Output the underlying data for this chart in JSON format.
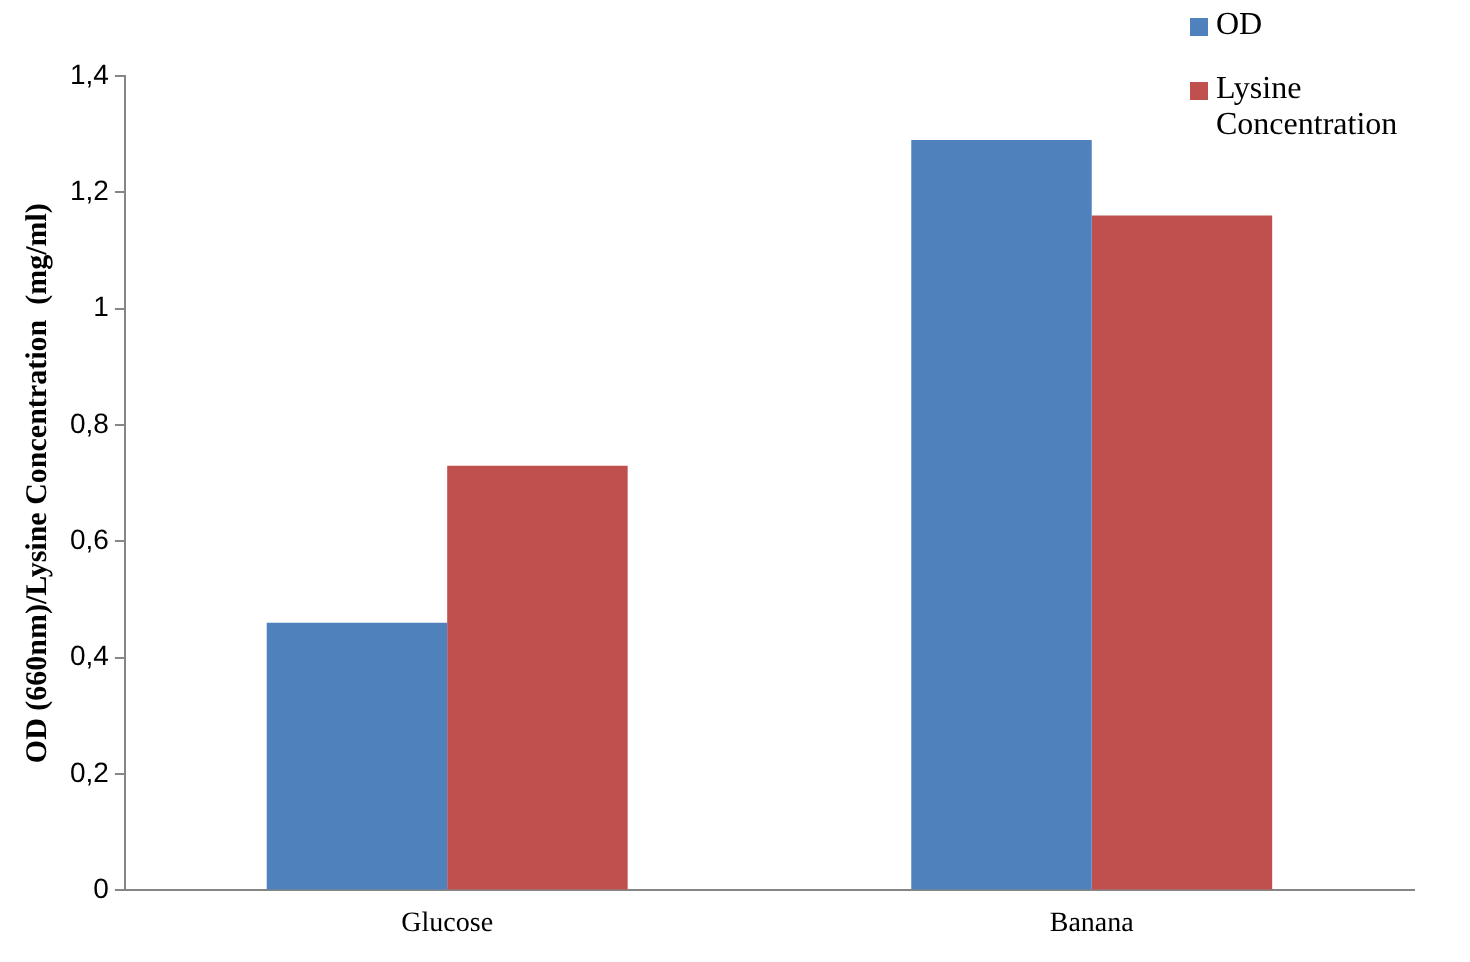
{
  "chart_data": {
    "type": "bar",
    "ylabel": "OD (660nm)/Lysine Concentration  (mg/ml)",
    "categories": [
      "Glucose",
      "Banana"
    ],
    "series": [
      {
        "name": "OD",
        "color": "#4f81bd",
        "values": [
          0.46,
          1.29
        ]
      },
      {
        "name": "Lysine Concentration",
        "color": "#c0504d",
        "values": [
          0.73,
          1.16
        ]
      }
    ],
    "ylim": [
      0,
      1.4
    ],
    "yticks": [
      0,
      {
        "value": 0.2,
        "label": "0,2"
      },
      {
        "value": 0.4,
        "label": "0,4"
      },
      {
        "value": 0.6,
        "label": "0,6"
      },
      {
        "value": 0.8,
        "label": "0,8"
      },
      {
        "value": 1,
        "label": "1"
      },
      {
        "value": 1.2,
        "label": "1,2"
      },
      {
        "value": 1.4,
        "label": "1,4"
      }
    ],
    "grid": false,
    "legend": "top right"
  }
}
